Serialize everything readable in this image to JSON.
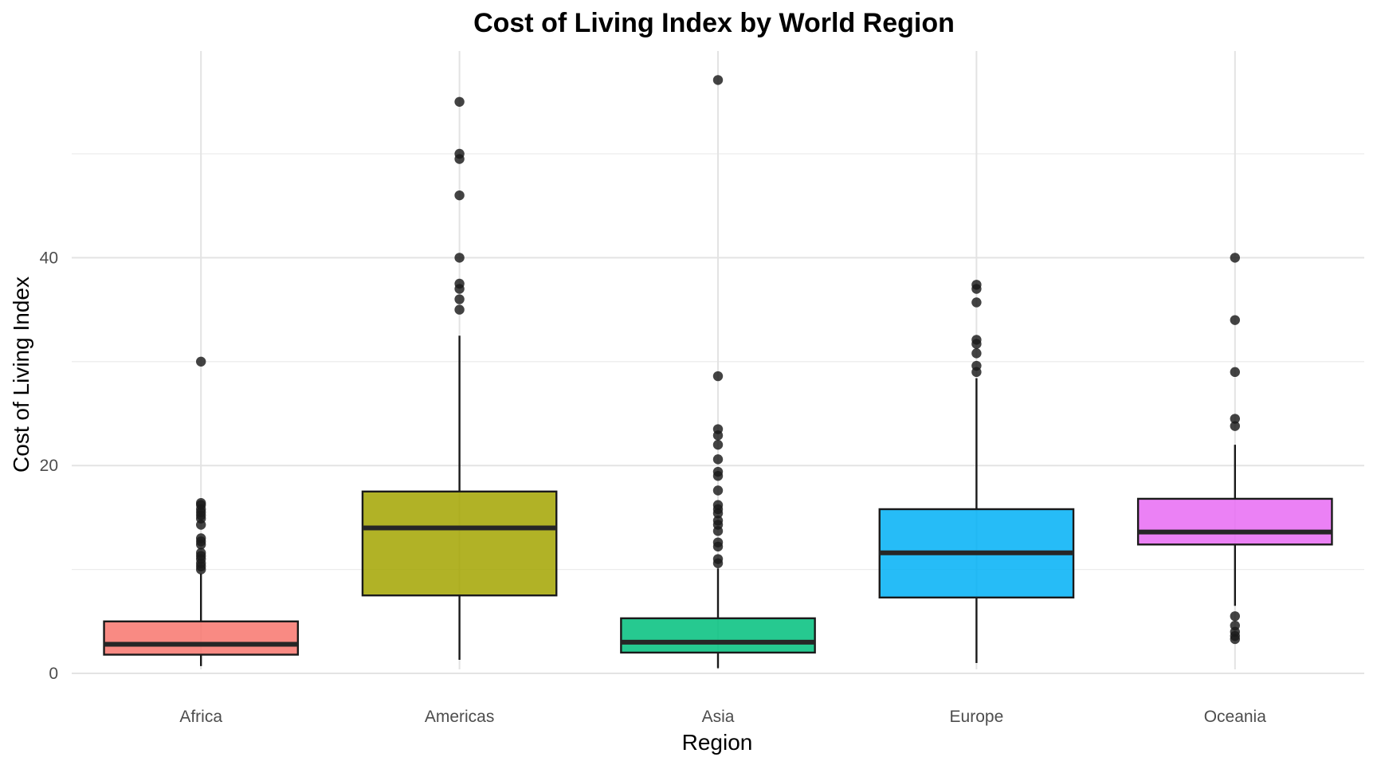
{
  "chart_data": {
    "type": "box",
    "title": "Cost of Living Index by World Region",
    "xlabel": "Region",
    "ylabel": "Cost of Living Index",
    "ylim": [
      -0.8,
      59.8
    ],
    "yticks": [
      0,
      20,
      40
    ],
    "ytick_labels": [
      "0",
      "20",
      "40"
    ],
    "grid": true,
    "legend": "none",
    "categories": [
      "Africa",
      "Americas",
      "Asia",
      "Europe",
      "Oceania"
    ],
    "series": [
      {
        "color": "#F8766D",
        "whisker_low": 0.7,
        "q1": 1.8,
        "median": 2.8,
        "q3": 5.0,
        "whisker_high": 9.6,
        "outliers": [
          30.0,
          16.4,
          16.2,
          15.8,
          15.5,
          15.2,
          14.9,
          14.3,
          13.0,
          12.7,
          12.4,
          11.6,
          11.3,
          11.0,
          10.6,
          10.3,
          10.0
        ]
      },
      {
        "color": "#A3A500",
        "whisker_low": 1.3,
        "q1": 7.5,
        "median": 14.0,
        "q3": 17.5,
        "whisker_high": 32.5,
        "outliers": [
          55.0,
          50.0,
          49.5,
          46.0,
          40.0,
          37.5,
          37.0,
          36.0,
          35.0
        ]
      },
      {
        "color": "#00BF7D",
        "whisker_low": 0.5,
        "q1": 2.0,
        "median": 3.0,
        "q3": 5.3,
        "whisker_high": 10.1,
        "outliers": [
          57.1,
          28.6,
          23.5,
          22.9,
          22.0,
          20.6,
          19.4,
          19.0,
          17.6,
          16.2,
          15.8,
          15.4,
          14.7,
          14.3,
          13.7,
          12.6,
          12.2,
          11.0,
          10.6
        ]
      },
      {
        "color": "#00B0F6",
        "whisker_low": 1.0,
        "q1": 7.3,
        "median": 11.6,
        "q3": 15.8,
        "whisker_high": 28.4,
        "outliers": [
          37.4,
          37.0,
          35.7,
          32.1,
          31.7,
          30.8,
          29.6,
          29.0
        ]
      },
      {
        "color": "#E76BF3",
        "whisker_low": 6.5,
        "q1": 12.4,
        "median": 13.6,
        "q3": 16.8,
        "whisker_high": 22.0,
        "outliers": [
          40.0,
          34.0,
          29.0,
          24.5,
          23.8,
          5.5,
          4.6,
          4.0,
          3.6,
          3.3
        ]
      }
    ]
  }
}
